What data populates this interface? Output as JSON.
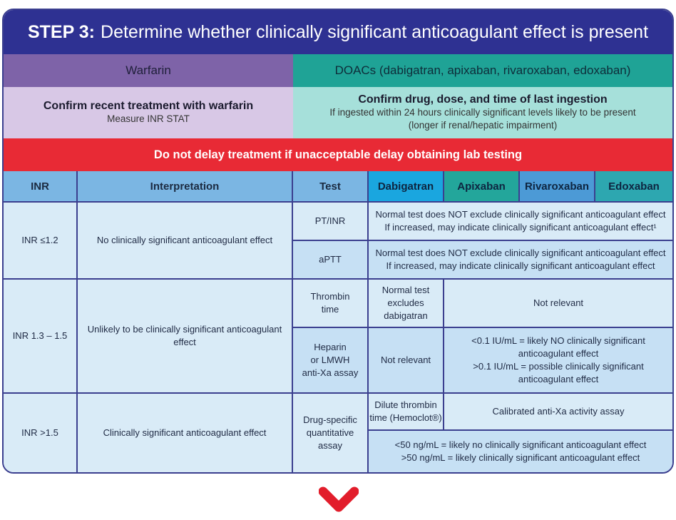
{
  "title": {
    "bold": "STEP 3:",
    "rest": "Determine whether clinically significant anticoagulant effect is present"
  },
  "warfarin": {
    "header": "Warfarin",
    "confirm": "Confirm recent treatment with warfarin",
    "sub": "Measure INR STAT"
  },
  "doacs": {
    "header": "DOACs (dabigatran, apixaban, rivaroxaban, edoxaban)",
    "confirm": "Confirm drug, dose, and time of last ingestion",
    "sub1": "If ingested within 24 hours clinically significant levels likely to be present",
    "sub2": "(longer if renal/hepatic impairment)"
  },
  "banner": "Do not delay treatment if unacceptable delay obtaining lab testing",
  "columns": {
    "inr": "INR",
    "interp": "Interpretation",
    "test": "Test",
    "dab": "Dabigatran",
    "api": "Apixaban",
    "riv": "Rivaroxaban",
    "edo": "Edoxaban"
  },
  "rows": {
    "r1": {
      "inr": "INR ≤1.2",
      "interp": "No clinically significant anticoagulant effect",
      "t1": "PT/INR",
      "t1a": "Normal test does NOT exclude clinically significant anticoagulant effect",
      "t1b": "If increased, may indicate clinically significant anticoagulant effect¹",
      "t2": "aPTT",
      "t2a": "Normal test does NOT exclude clinically significant anticoagulant effect",
      "t2b": "If increased, may indicate clinically significant anticoagulant effect"
    },
    "r2": {
      "inr": "INR 1.3 – 1.5",
      "interp": "Unlikely to be clinically significant anticoagulant effect",
      "t1a": "Thrombin",
      "t1b": "time",
      "t1dab_a": "Normal test",
      "t1dab_b": "excludes",
      "t1dab_c": "dabigatran",
      "t1rest": "Not relevant",
      "t2a": "Heparin",
      "t2b": "or LMWH",
      "t2c": "anti-Xa assay",
      "t2dab": "Not relevant",
      "t2r1": "<0.1 IU/mL = likely NO clinically significant",
      "t2r2": "anticoagulant effect",
      "t2r3": ">0.1 IU/mL = possible clinically significant",
      "t2r4": "anticoagulant effect"
    },
    "r3": {
      "inr": "INR >1.5",
      "interp": "Clinically significant anticoagulant effect",
      "ta": "Drug-specific",
      "tb": "quantitative",
      "tc": "assay",
      "dab1": "Dilute thrombin",
      "dab2": "time (Hemoclot®)",
      "rest": "Calibrated anti-Xa activity assay",
      "b1": "<50 ng/mL = likely no clinically significant anticoagulant effect",
      "b2": ">50 ng/mL = likely clinically significant anticoagulant effect"
    }
  },
  "colors": {
    "title_bg": "#2e3192",
    "banner": "#e82a35",
    "chevron": "#e21d2b"
  },
  "icons": {
    "chevron": "chevron-down-icon"
  }
}
